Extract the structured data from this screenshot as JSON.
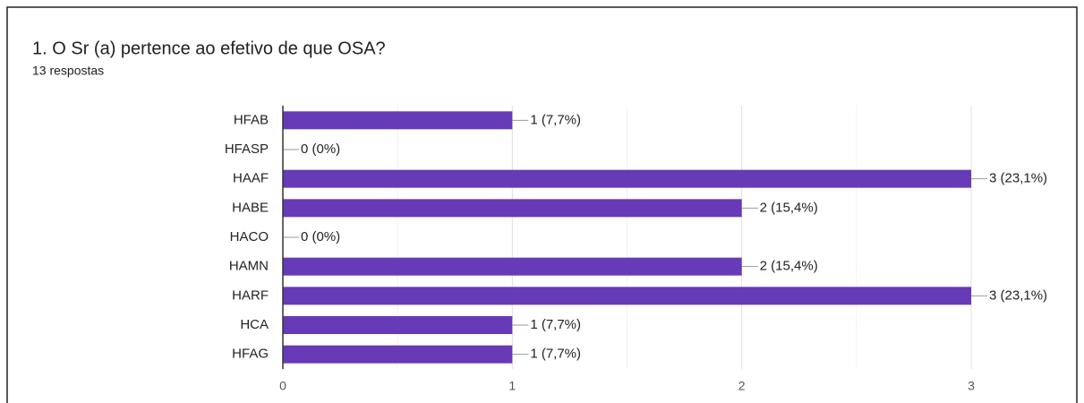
{
  "chart_data": {
    "type": "barh",
    "title": "1. O Sr (a) pertence ao efetivo de que OSA?",
    "subtitle": "13 respostas",
    "categories": [
      "HFAB",
      "HFASP",
      "HAAF",
      "HABE",
      "HACO",
      "HAMN",
      "HARF",
      "HCA",
      "HFAG"
    ],
    "values": [
      1,
      0,
      3,
      2,
      0,
      2,
      3,
      1,
      1
    ],
    "value_labels": [
      "1 (7,7%)",
      "0 (0%)",
      "3 (23,1%)",
      "2 (15,4%)",
      "0 (0%)",
      "2 (15,4%)",
      "3 (23,1%)",
      "1 (7,7%)",
      "1 (7,7%)"
    ],
    "color": "#673ab7",
    "xlim": [
      0,
      3
    ],
    "xticks": [
      0,
      1,
      2,
      3
    ],
    "xminorticks": [
      0.5,
      1.5,
      2.5
    ],
    "grid": true
  }
}
